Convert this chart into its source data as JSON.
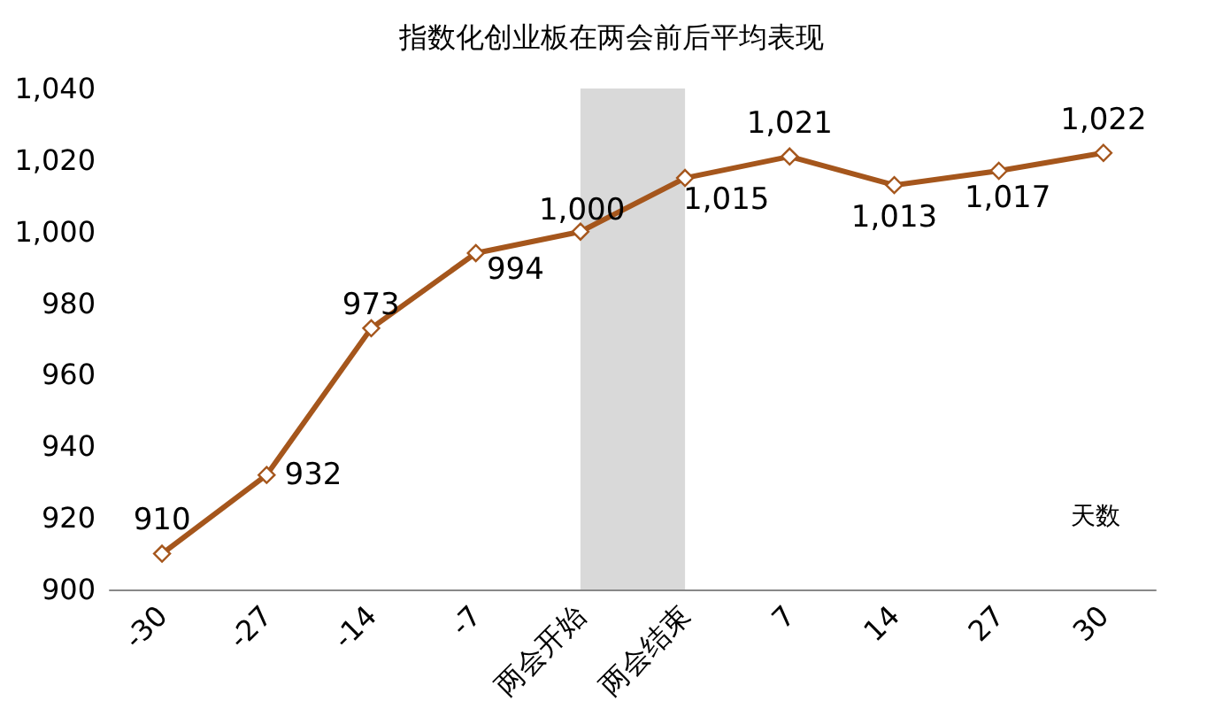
{
  "chart_data": {
    "type": "line",
    "title": "指数化创业板在两会前后平均表现",
    "xlabel": "天数",
    "categories": [
      "-30",
      "-27",
      "-14",
      "-7",
      "两会开始",
      "两会结束",
      "7",
      "14",
      "27",
      "30"
    ],
    "series": [
      {
        "color": "#a5561c",
        "values": [
          910,
          932,
          973,
          994,
          1000,
          1015,
          1021,
          1013,
          1017,
          1022
        ],
        "value_labels": [
          "910",
          "932",
          "973",
          "994",
          "1,000",
          "1,015",
          "1,021",
          "1,013",
          "1,017",
          "1,022"
        ]
      }
    ],
    "ylim": [
      900,
      1040
    ],
    "yticks": [
      {
        "value": 900,
        "label": "900"
      },
      {
        "value": 920,
        "label": "920"
      },
      {
        "value": 940,
        "label": "940"
      },
      {
        "value": 960,
        "label": "960"
      },
      {
        "value": 980,
        "label": "980"
      },
      {
        "value": 1000,
        "label": "1,000"
      },
      {
        "value": 1020,
        "label": "1,020"
      },
      {
        "value": 1040,
        "label": "1,040"
      }
    ],
    "bands": [
      {
        "axis": "x",
        "from": "两会开始",
        "to": "两会结束",
        "color": "#d9d9d9"
      }
    ],
    "marker": "diamond",
    "line_style": "solid",
    "grid": false
  }
}
